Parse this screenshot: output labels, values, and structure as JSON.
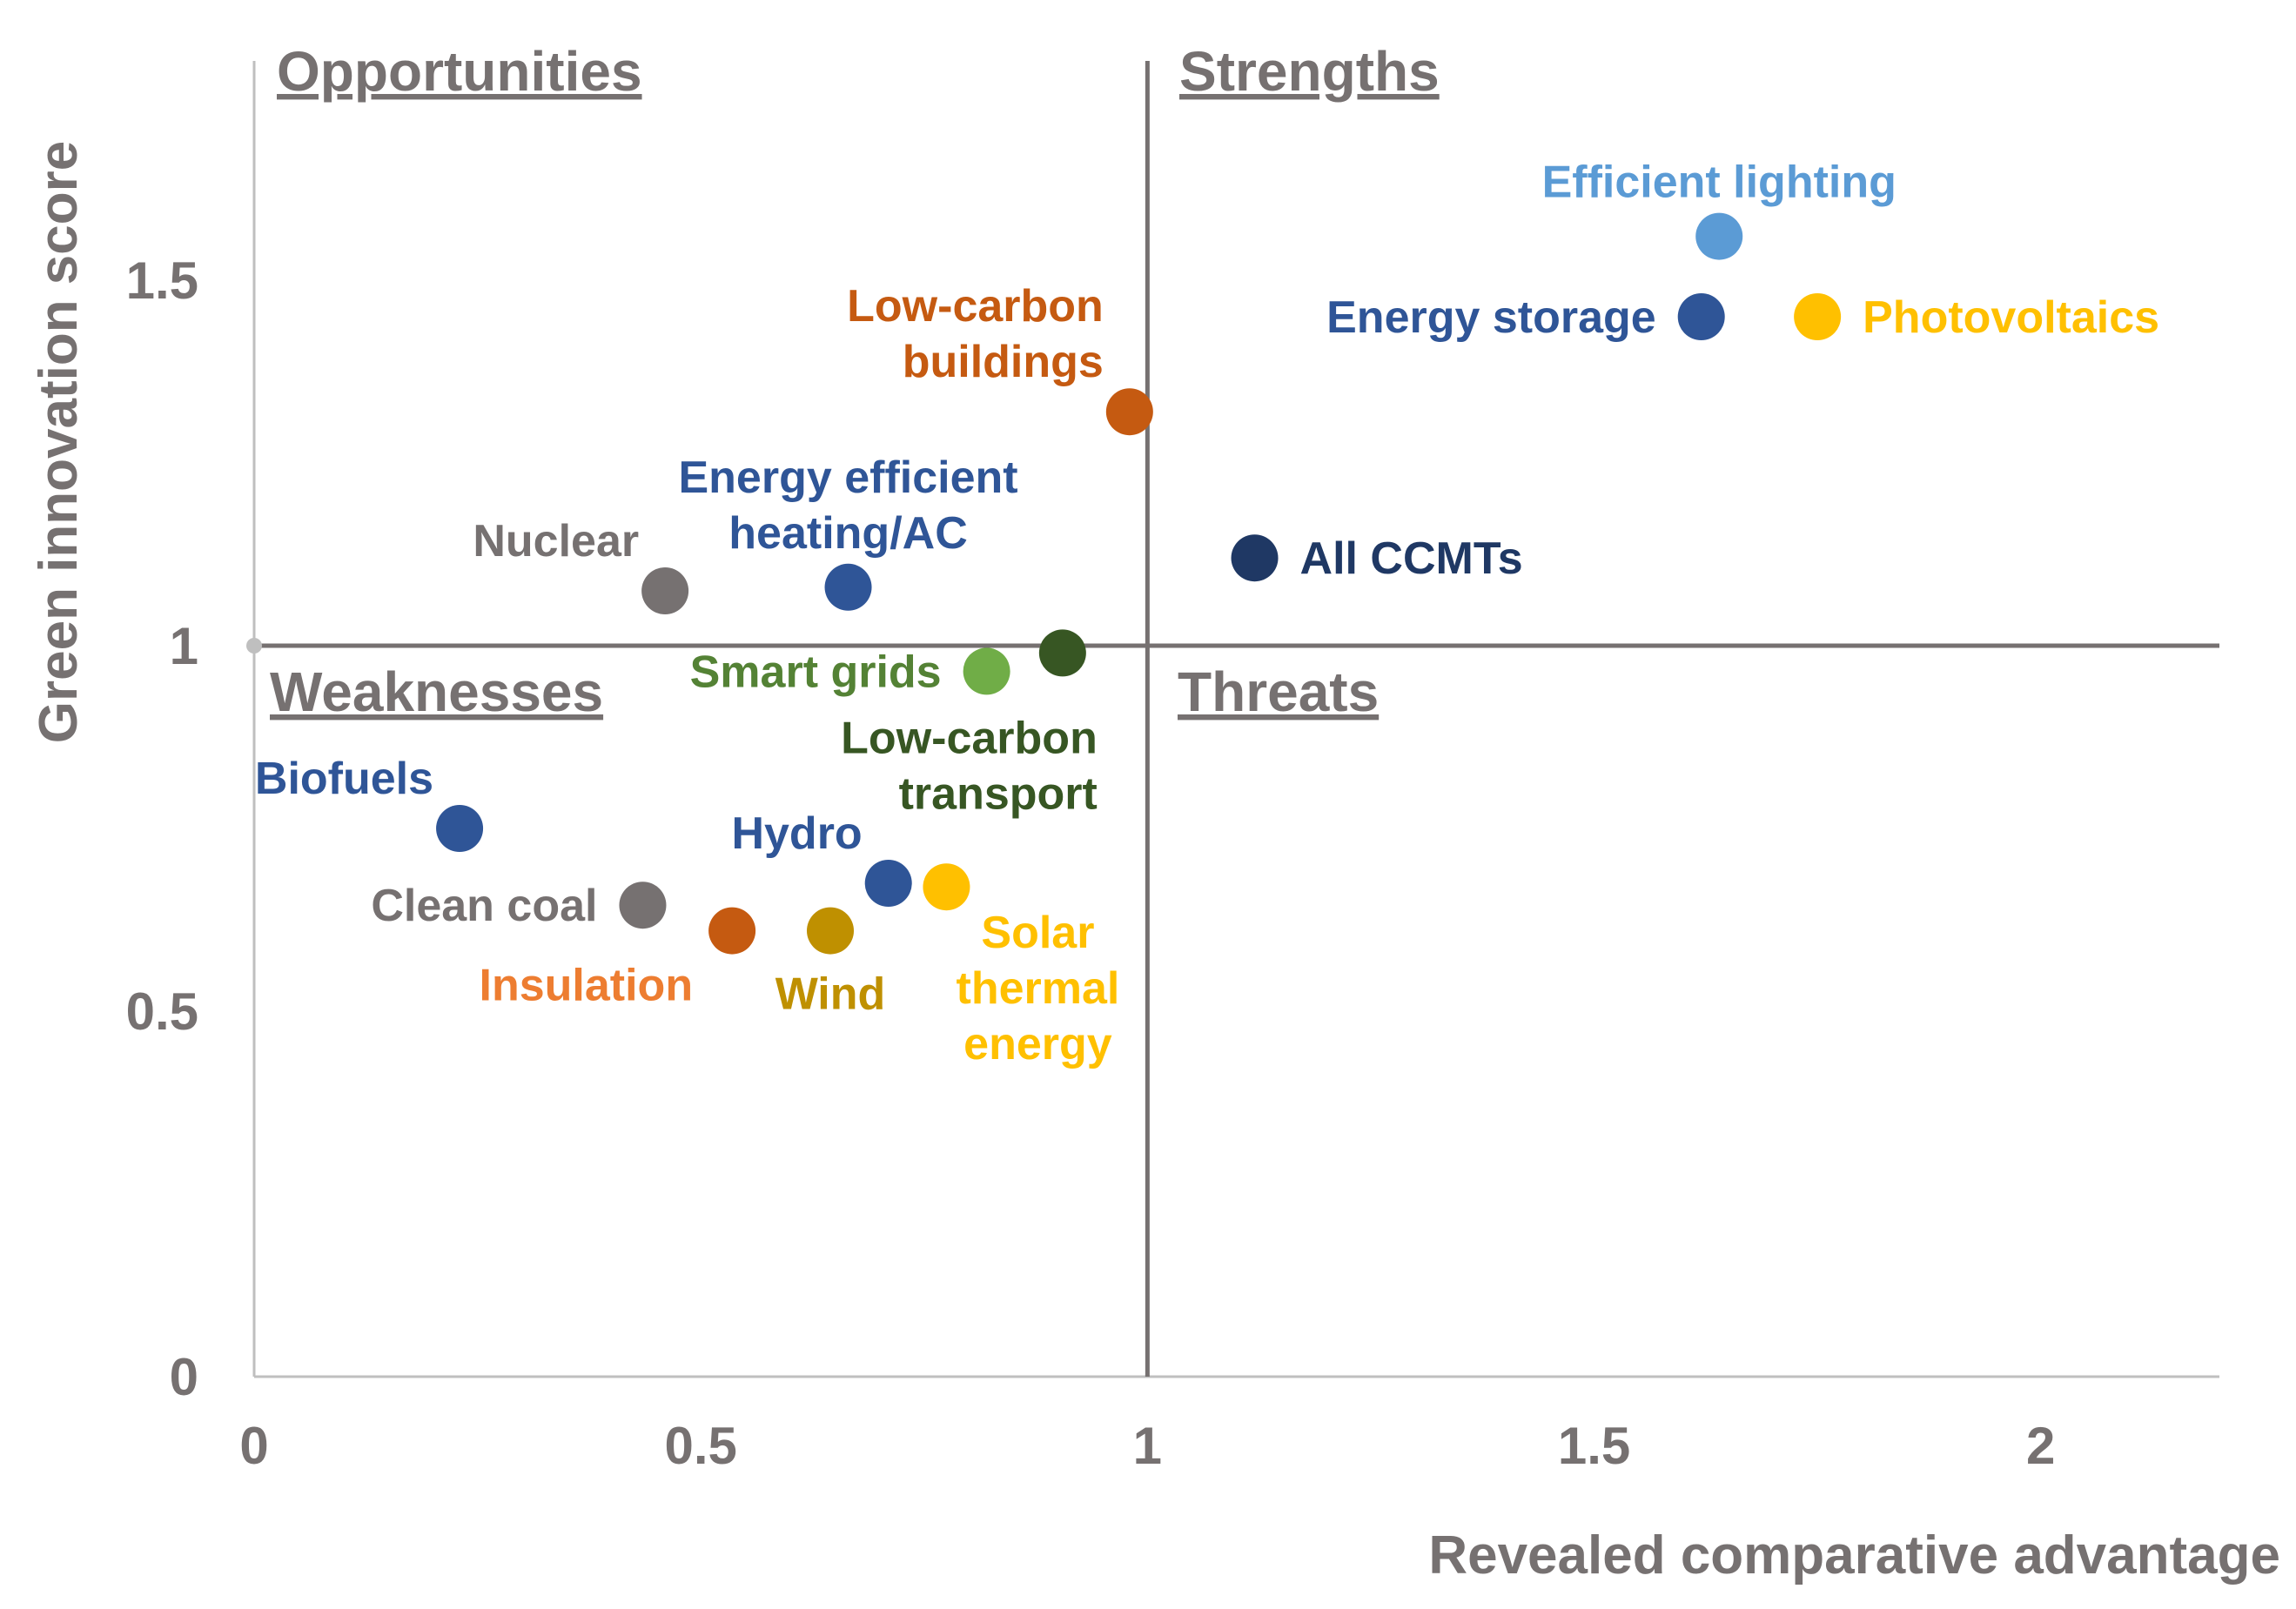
{
  "chart_data": {
    "type": "scatter",
    "title": "",
    "xlabel": "Revealed comparative advantage",
    "ylabel": "Green innovation score",
    "xlim": [
      0,
      2.2
    ],
    "ylim": [
      0,
      1.8
    ],
    "xticks": [
      {
        "value": 0,
        "label": "0"
      },
      {
        "value": 0.5,
        "label": "0.5"
      },
      {
        "value": 1,
        "label": "1"
      },
      {
        "value": 1.5,
        "label": "1.5"
      },
      {
        "value": 2,
        "label": "2"
      }
    ],
    "yticks": [
      {
        "value": 0,
        "label": "0"
      },
      {
        "value": 0.5,
        "label": "0.5"
      },
      {
        "value": 1,
        "label": "1"
      },
      {
        "value": 1.5,
        "label": "1.5"
      }
    ],
    "reference_lines": {
      "x": 1,
      "y": 1
    },
    "quadrants": {
      "top_left": "Opportunities",
      "top_right": "Strengths",
      "bottom_left": "Weaknesses",
      "bottom_right": "Threats"
    },
    "points": [
      {
        "name": "Efficient lighting",
        "label_lines": [
          "Efficient lighting"
        ],
        "x": 1.64,
        "y": 1.56,
        "color": "#5B9BD5",
        "label_color": "#5B9BD5",
        "label_pos": "above"
      },
      {
        "name": "Energy storage",
        "label_lines": [
          "Energy storage"
        ],
        "x": 1.62,
        "y": 1.45,
        "color": "#2F5597",
        "label_color": "#2F5597",
        "label_pos": "left"
      },
      {
        "name": "Photovoltaics",
        "label_lines": [
          "Photovoltaics"
        ],
        "x": 1.75,
        "y": 1.45,
        "color": "#FFC000",
        "label_color": "#FFC000",
        "label_pos": "right"
      },
      {
        "name": "Low-carbon buildings",
        "label_lines": [
          "Low-carbon",
          "buildings"
        ],
        "x": 0.98,
        "y": 1.32,
        "color": "#C55A11",
        "label_color": "#C55A11",
        "label_pos": "above-left"
      },
      {
        "name": "Energy efficient heating/AC",
        "label_lines": [
          "Energy efficient",
          "heating/AC"
        ],
        "x": 0.665,
        "y": 1.08,
        "color": "#2F5597",
        "label_color": "#2F5597",
        "label_pos": "above"
      },
      {
        "name": "Nuclear",
        "label_lines": [
          "Nuclear"
        ],
        "x": 0.46,
        "y": 1.075,
        "color": "#767171",
        "label_color": "#767171",
        "label_pos": "above-left"
      },
      {
        "name": "All CCMTs",
        "label_lines": [
          "All CCMTs"
        ],
        "x": 1.12,
        "y": 1.12,
        "color": "#1F3864",
        "label_color": "#1F3864",
        "label_pos": "right"
      },
      {
        "name": "Smart grids",
        "label_lines": [
          "Smart grids"
        ],
        "x": 0.82,
        "y": 0.965,
        "color": "#70AD47",
        "label_color": "#548235",
        "label_pos": "left"
      },
      {
        "name": "Low-carbon transport",
        "label_lines": [
          "Low-carbon",
          "transport"
        ],
        "x": 0.905,
        "y": 0.99,
        "color": "#375623",
        "label_color": "#375623",
        "label_pos": "below-left"
      },
      {
        "name": "Biofuels",
        "label_lines": [
          "Biofuels"
        ],
        "x": 0.23,
        "y": 0.75,
        "color": "#2F5597",
        "label_color": "#2F5597",
        "label_pos": "above-left"
      },
      {
        "name": "Clean coal",
        "label_lines": [
          "Clean coal"
        ],
        "x": 0.435,
        "y": 0.645,
        "color": "#767171",
        "label_color": "#767171",
        "label_pos": "left"
      },
      {
        "name": "Hydro",
        "label_lines": [
          "Hydro"
        ],
        "x": 0.71,
        "y": 0.675,
        "color": "#2F5597",
        "label_color": "#2F5597",
        "label_pos": "above-left"
      },
      {
        "name": "Insulation",
        "label_lines": [
          "Insulation"
        ],
        "x": 0.535,
        "y": 0.61,
        "color": "#C55A11",
        "label_color": "#ED7D31",
        "label_pos": "below-left"
      },
      {
        "name": "Wind",
        "label_lines": [
          "Wind"
        ],
        "x": 0.645,
        "y": 0.61,
        "color": "#BF9000",
        "label_color": "#BF9000",
        "label_pos": "below"
      },
      {
        "name": "Solar thermal energy",
        "label_lines": [
          "Solar",
          "thermal",
          "energy"
        ],
        "x": 0.775,
        "y": 0.67,
        "color": "#FFC000",
        "label_color": "#FFC000",
        "label_pos": "below-right"
      }
    ]
  }
}
